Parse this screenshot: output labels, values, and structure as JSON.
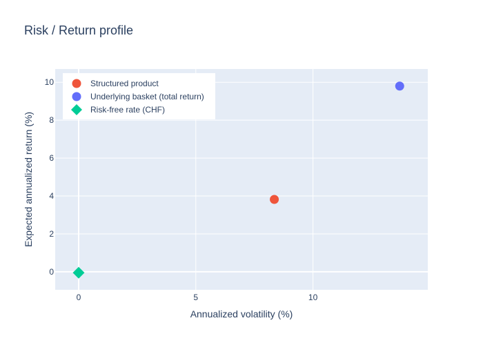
{
  "chart_data": {
    "type": "scatter",
    "title": "Risk / Return profile",
    "xlabel": "Annualized volatility (%)",
    "ylabel": "Expected annualized return (%)",
    "xlim": [
      -1,
      14.9
    ],
    "ylim": [
      -0.95,
      10.7
    ],
    "xticks": [
      0,
      5,
      10
    ],
    "yticks": [
      0,
      2,
      4,
      6,
      8,
      10
    ],
    "grid": true,
    "legend_position": "top-left",
    "series": [
      {
        "name": "Structured product",
        "symbol": "circle",
        "color": "#EF553B",
        "points": [
          {
            "x": 8.35,
            "y": 3.82
          }
        ]
      },
      {
        "name": "Underlying basket (total return)",
        "symbol": "circle",
        "color": "#636EFA",
        "points": [
          {
            "x": 13.7,
            "y": 9.8
          }
        ]
      },
      {
        "name": "Risk-free rate (CHF)",
        "symbol": "diamond",
        "color": "#00CC96",
        "points": [
          {
            "x": 0,
            "y": -0.05
          }
        ]
      }
    ]
  },
  "theme": {
    "plot_bg": "#E5ECF6",
    "grid_color": "#ffffff",
    "text_color": "#2a3f5f"
  }
}
